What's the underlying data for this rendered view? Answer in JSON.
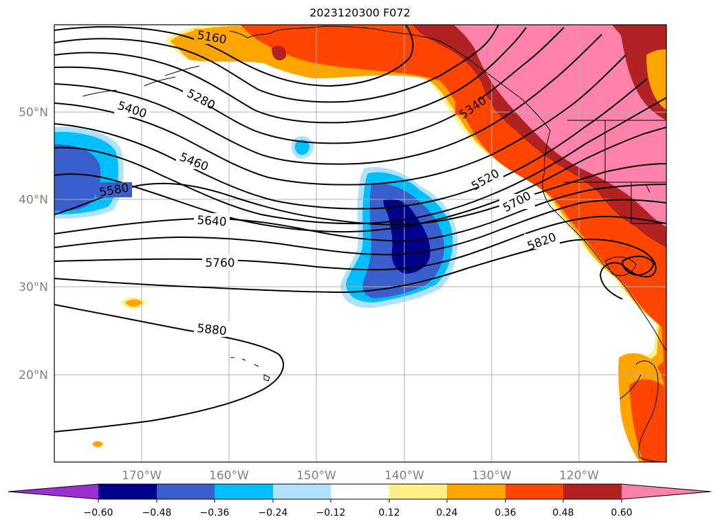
{
  "title": "2023120300 F072",
  "lat_labels": [
    "50°N",
    "40°N",
    "30°N",
    "20°N"
  ],
  "lon_labels": [
    "170°W",
    "160°W",
    "150°W",
    "140°W",
    "130°W",
    "120°W"
  ],
  "contour_labels": [
    "5160",
    "5280",
    "5340",
    "5400",
    "5460",
    "5520",
    "5580",
    "5640",
    "5700",
    "5760",
    "5820",
    "5880"
  ],
  "colorbar": {
    "ticks": [
      "−0.60",
      "−0.48",
      "−0.36",
      "−0.24",
      "−0.12",
      "0.12",
      "0.24",
      "0.36",
      "0.48",
      "0.60"
    ],
    "colors": [
      "#9b30d0",
      "#00008b",
      "#3a5fcd",
      "#00bfff",
      "#b0e2ff",
      "#ffffff",
      "#fff08a",
      "#ffa500",
      "#ff4500",
      "#b22222",
      "#ff82ab"
    ]
  },
  "colors": {
    "gridline": "#b0b0b0",
    "axis_label": "#808080",
    "contour": "#000000"
  }
}
